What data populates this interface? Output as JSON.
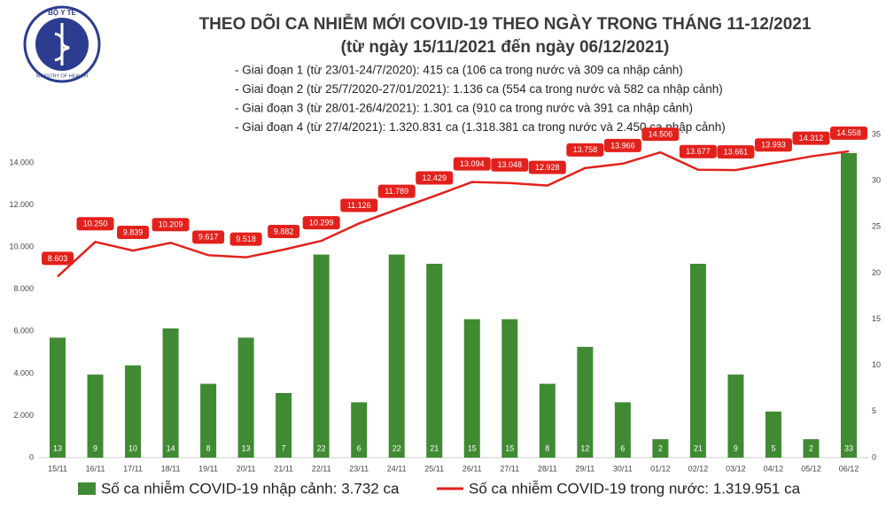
{
  "logo": {
    "top": "BỘ Y TẾ",
    "bottom": "MINISTRY OF HEALTH"
  },
  "chart_data": {
    "type": "combo",
    "title": "THEO DÕI CA NHIỄM MỚI COVID-19 THEO NGÀY TRONG THÁNG 11-12/2021",
    "subtitle": "(từ ngày 15/11/2021 đến ngày 06/12/2021)",
    "notes": [
      "- Giai đoạn 1 (từ 23/01-24/7/2020): 415 ca (106 ca trong nước và 309 ca nhập cảnh)",
      "- Giai đoạn 2 (từ 25/7/2020-27/01/2021): 1.136 ca (554 ca trong nước và 582 ca nhập cảnh)",
      "- Giai đoạn 3 (từ 28/01-26/4/2021): 1.301 ca (910 ca trong nước và 391 ca nhập cảnh)",
      "- Giai đoạn 4 (từ 27/4/2021): 1.320.831 ca (1.318.381 ca trong nước và 2.450 ca nhập cảnh)"
    ],
    "categories": [
      "15/11",
      "16/11",
      "17/11",
      "18/11",
      "19/11",
      "20/11",
      "21/11",
      "22/11",
      "23/11",
      "24/11",
      "25/11",
      "26/11",
      "27/11",
      "28/11",
      "29/11",
      "30/11",
      "01/12",
      "02/12",
      "03/12",
      "04/12",
      "05/12",
      "06/12"
    ],
    "series": [
      {
        "name": "Số ca nhiễm COVID-19 nhập cảnh: 3.732 ca",
        "type": "bar",
        "axis": "y2",
        "color": "#3f8a32",
        "values": [
          13,
          9,
          10,
          14,
          8,
          13,
          7,
          22,
          6,
          22,
          21,
          15,
          15,
          8,
          12,
          6,
          2,
          21,
          9,
          5,
          2,
          33
        ]
      },
      {
        "name": "Số ca nhiễm COVID-19 trong nước: 1.319.951 ca",
        "type": "line",
        "axis": "y",
        "color": "#e3211c",
        "values": [
          8603,
          10250,
          9839,
          10209,
          9617,
          9518,
          9882,
          10299,
          11126,
          11789,
          12429,
          13094,
          13048,
          12928,
          13758,
          13966,
          14506,
          13677,
          13661,
          13993,
          14312,
          14558
        ],
        "value_labels": [
          "8.603",
          "10.250",
          "9.839",
          "10.209",
          "9.617",
          "9.518",
          "9.882",
          "10.299",
          "11.126",
          "11.789",
          "12.429",
          "13.094",
          "13.048",
          "12.928",
          "13.758",
          "13.966",
          "14.506",
          "13.677",
          "13.661",
          "13.993",
          "14.312",
          "14.558"
        ]
      }
    ],
    "ylim": [
      0,
      15350
    ],
    "yticks": [
      0,
      {
        "value": 2000,
        "label": "2.000"
      },
      {
        "value": 4000,
        "label": "4.000"
      },
      {
        "value": 6000,
        "label": "6.000"
      },
      {
        "value": 8000,
        "label": "8.000"
      },
      {
        "value": 10000,
        "label": "10.000"
      },
      {
        "value": 12000,
        "label": "12.000"
      },
      {
        "value": 14000,
        "label": "14.000"
      }
    ],
    "y2lim": [
      0,
      35
    ],
    "y2ticks": [
      0,
      5,
      10,
      15,
      20,
      25,
      30,
      35
    ]
  }
}
